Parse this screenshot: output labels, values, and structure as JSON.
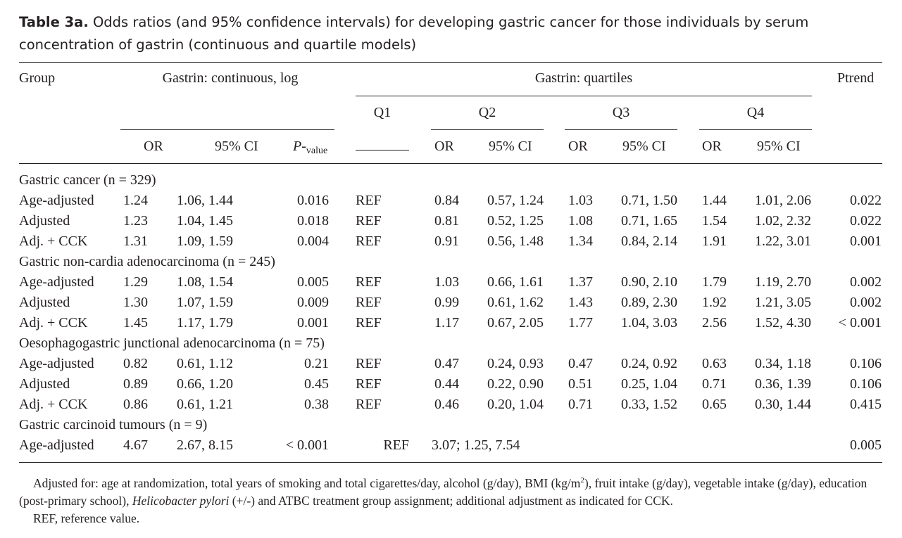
{
  "caption": {
    "label": "Table 3a.",
    "text": "Odds ratios (and 95% confidence intervals) for developing gastric cancer for those individuals by serum concentration of gastrin (continuous and quartile models)"
  },
  "headers": {
    "group": "Group",
    "continuous": "Gastrin: continuous, log",
    "quartiles": "Gastrin: quartiles",
    "ptrend": "Ptrend",
    "q1": "Q1",
    "q2": "Q2",
    "q3": "Q3",
    "q4": "Q4",
    "or": "OR",
    "ci": "95% CI",
    "pvalue_p": "P-",
    "pvalue_sub": "value"
  },
  "sections": [
    {
      "title": "Gastric cancer (n = 329)",
      "rows": [
        {
          "label": "Age-adjusted",
          "or": "1.24",
          "ci": "1.06, 1.44",
          "p": "0.016",
          "q1": "REF",
          "q2_or": "0.84",
          "q2_ci": "0.57, 1.24",
          "q3_or": "1.03",
          "q3_ci": "0.71, 1.50",
          "q4_or": "1.44",
          "q4_ci": "1.01, 2.06",
          "ptrend": "0.022"
        },
        {
          "label": "Adjusted",
          "or": "1.23",
          "ci": "1.04, 1.45",
          "p": "0.018",
          "q1": "REF",
          "q2_or": "0.81",
          "q2_ci": "0.52, 1.25",
          "q3_or": "1.08",
          "q3_ci": "0.71, 1.65",
          "q4_or": "1.54",
          "q4_ci": "1.02, 2.32",
          "ptrend": "0.022"
        },
        {
          "label": "Adj. + CCK",
          "or": "1.31",
          "ci": "1.09, 1.59",
          "p": "0.004",
          "q1": "REF",
          "q2_or": "0.91",
          "q2_ci": "0.56, 1.48",
          "q3_or": "1.34",
          "q3_ci": "0.84, 2.14",
          "q4_or": "1.91",
          "q4_ci": "1.22, 3.01",
          "ptrend": "0.001"
        }
      ]
    },
    {
      "title": "Gastric non-cardia adenocarcinoma (n = 245)",
      "rows": [
        {
          "label": "Age-adjusted",
          "or": "1.29",
          "ci": "1.08, 1.54",
          "p": "0.005",
          "q1": "REF",
          "q2_or": "1.03",
          "q2_ci": "0.66, 1.61",
          "q3_or": "1.37",
          "q3_ci": "0.90, 2.10",
          "q4_or": "1.79",
          "q4_ci": "1.19, 2.70",
          "ptrend": "0.002"
        },
        {
          "label": "Adjusted",
          "or": "1.30",
          "ci": "1.07, 1.59",
          "p": "0.009",
          "q1": "REF",
          "q2_or": "0.99",
          "q2_ci": "0.61, 1.62",
          "q3_or": "1.43",
          "q3_ci": "0.89, 2.30",
          "q4_or": "1.92",
          "q4_ci": "1.21, 3.05",
          "ptrend": "0.002"
        },
        {
          "label": "Adj. + CCK",
          "or": "1.45",
          "ci": "1.17, 1.79",
          "p": "0.001",
          "q1": "REF",
          "q2_or": "1.17",
          "q2_ci": "0.67, 2.05",
          "q3_or": "1.77",
          "q3_ci": "1.04, 3.03",
          "q4_or": "2.56",
          "q4_ci": "1.52, 4.30",
          "ptrend": "< 0.001"
        }
      ]
    },
    {
      "title": "Oesophagogastric junctional adenocarcinoma (n = 75)",
      "rows": [
        {
          "label": "Age-adjusted",
          "or": "0.82",
          "ci": "0.61, 1.12",
          "p": "0.21",
          "q1": "REF",
          "q2_or": "0.47",
          "q2_ci": "0.24, 0.93",
          "q3_or": "0.47",
          "q3_ci": "0.24, 0.92",
          "q4_or": "0.63",
          "q4_ci": "0.34, 1.18",
          "ptrend": "0.106"
        },
        {
          "label": "Adjusted",
          "or": "0.89",
          "ci": "0.66, 1.20",
          "p": "0.45",
          "q1": "REF",
          "q2_or": "0.44",
          "q2_ci": "0.22, 0.90",
          "q3_or": "0.51",
          "q3_ci": "0.25, 1.04",
          "q4_or": "0.71",
          "q4_ci": "0.36, 1.39",
          "ptrend": "0.106"
        },
        {
          "label": "Adj. + CCK",
          "or": "0.86",
          "ci": "0.61, 1.21",
          "p": "0.38",
          "q1": "REF",
          "q2_or": "0.46",
          "q2_ci": "0.20, 1.04",
          "q3_or": "0.71",
          "q3_ci": "0.33, 1.52",
          "q4_or": "0.65",
          "q4_ci": "0.30, 1.44",
          "ptrend": "0.415"
        }
      ]
    },
    {
      "title": "Gastric carcinoid tumours (n = 9)",
      "rows": [
        {
          "label": "Age-adjusted",
          "or": "4.67",
          "ci": "2.67, 8.15",
          "p": "< 0.001",
          "q1": "REF",
          "q2_combined": "3.07; 1.25, 7.54",
          "ptrend": "0.005"
        }
      ]
    }
  ],
  "notes": {
    "adjusted_a": "Adjusted for: age at randomization, total years of smoking and total cigarettes/day, alcohol (g/day), BMI (kg/m",
    "adjusted_sup": "2",
    "adjusted_b": "), fruit intake (g/day), vegetable intake (g/day), education (post-primary school), ",
    "adjusted_italic": "Helicobacter pylori",
    "adjusted_c": " (+/-) and ATBC treatment group assignment; additional adjustment as indicated for CCK.",
    "ref": "REF, reference value."
  }
}
